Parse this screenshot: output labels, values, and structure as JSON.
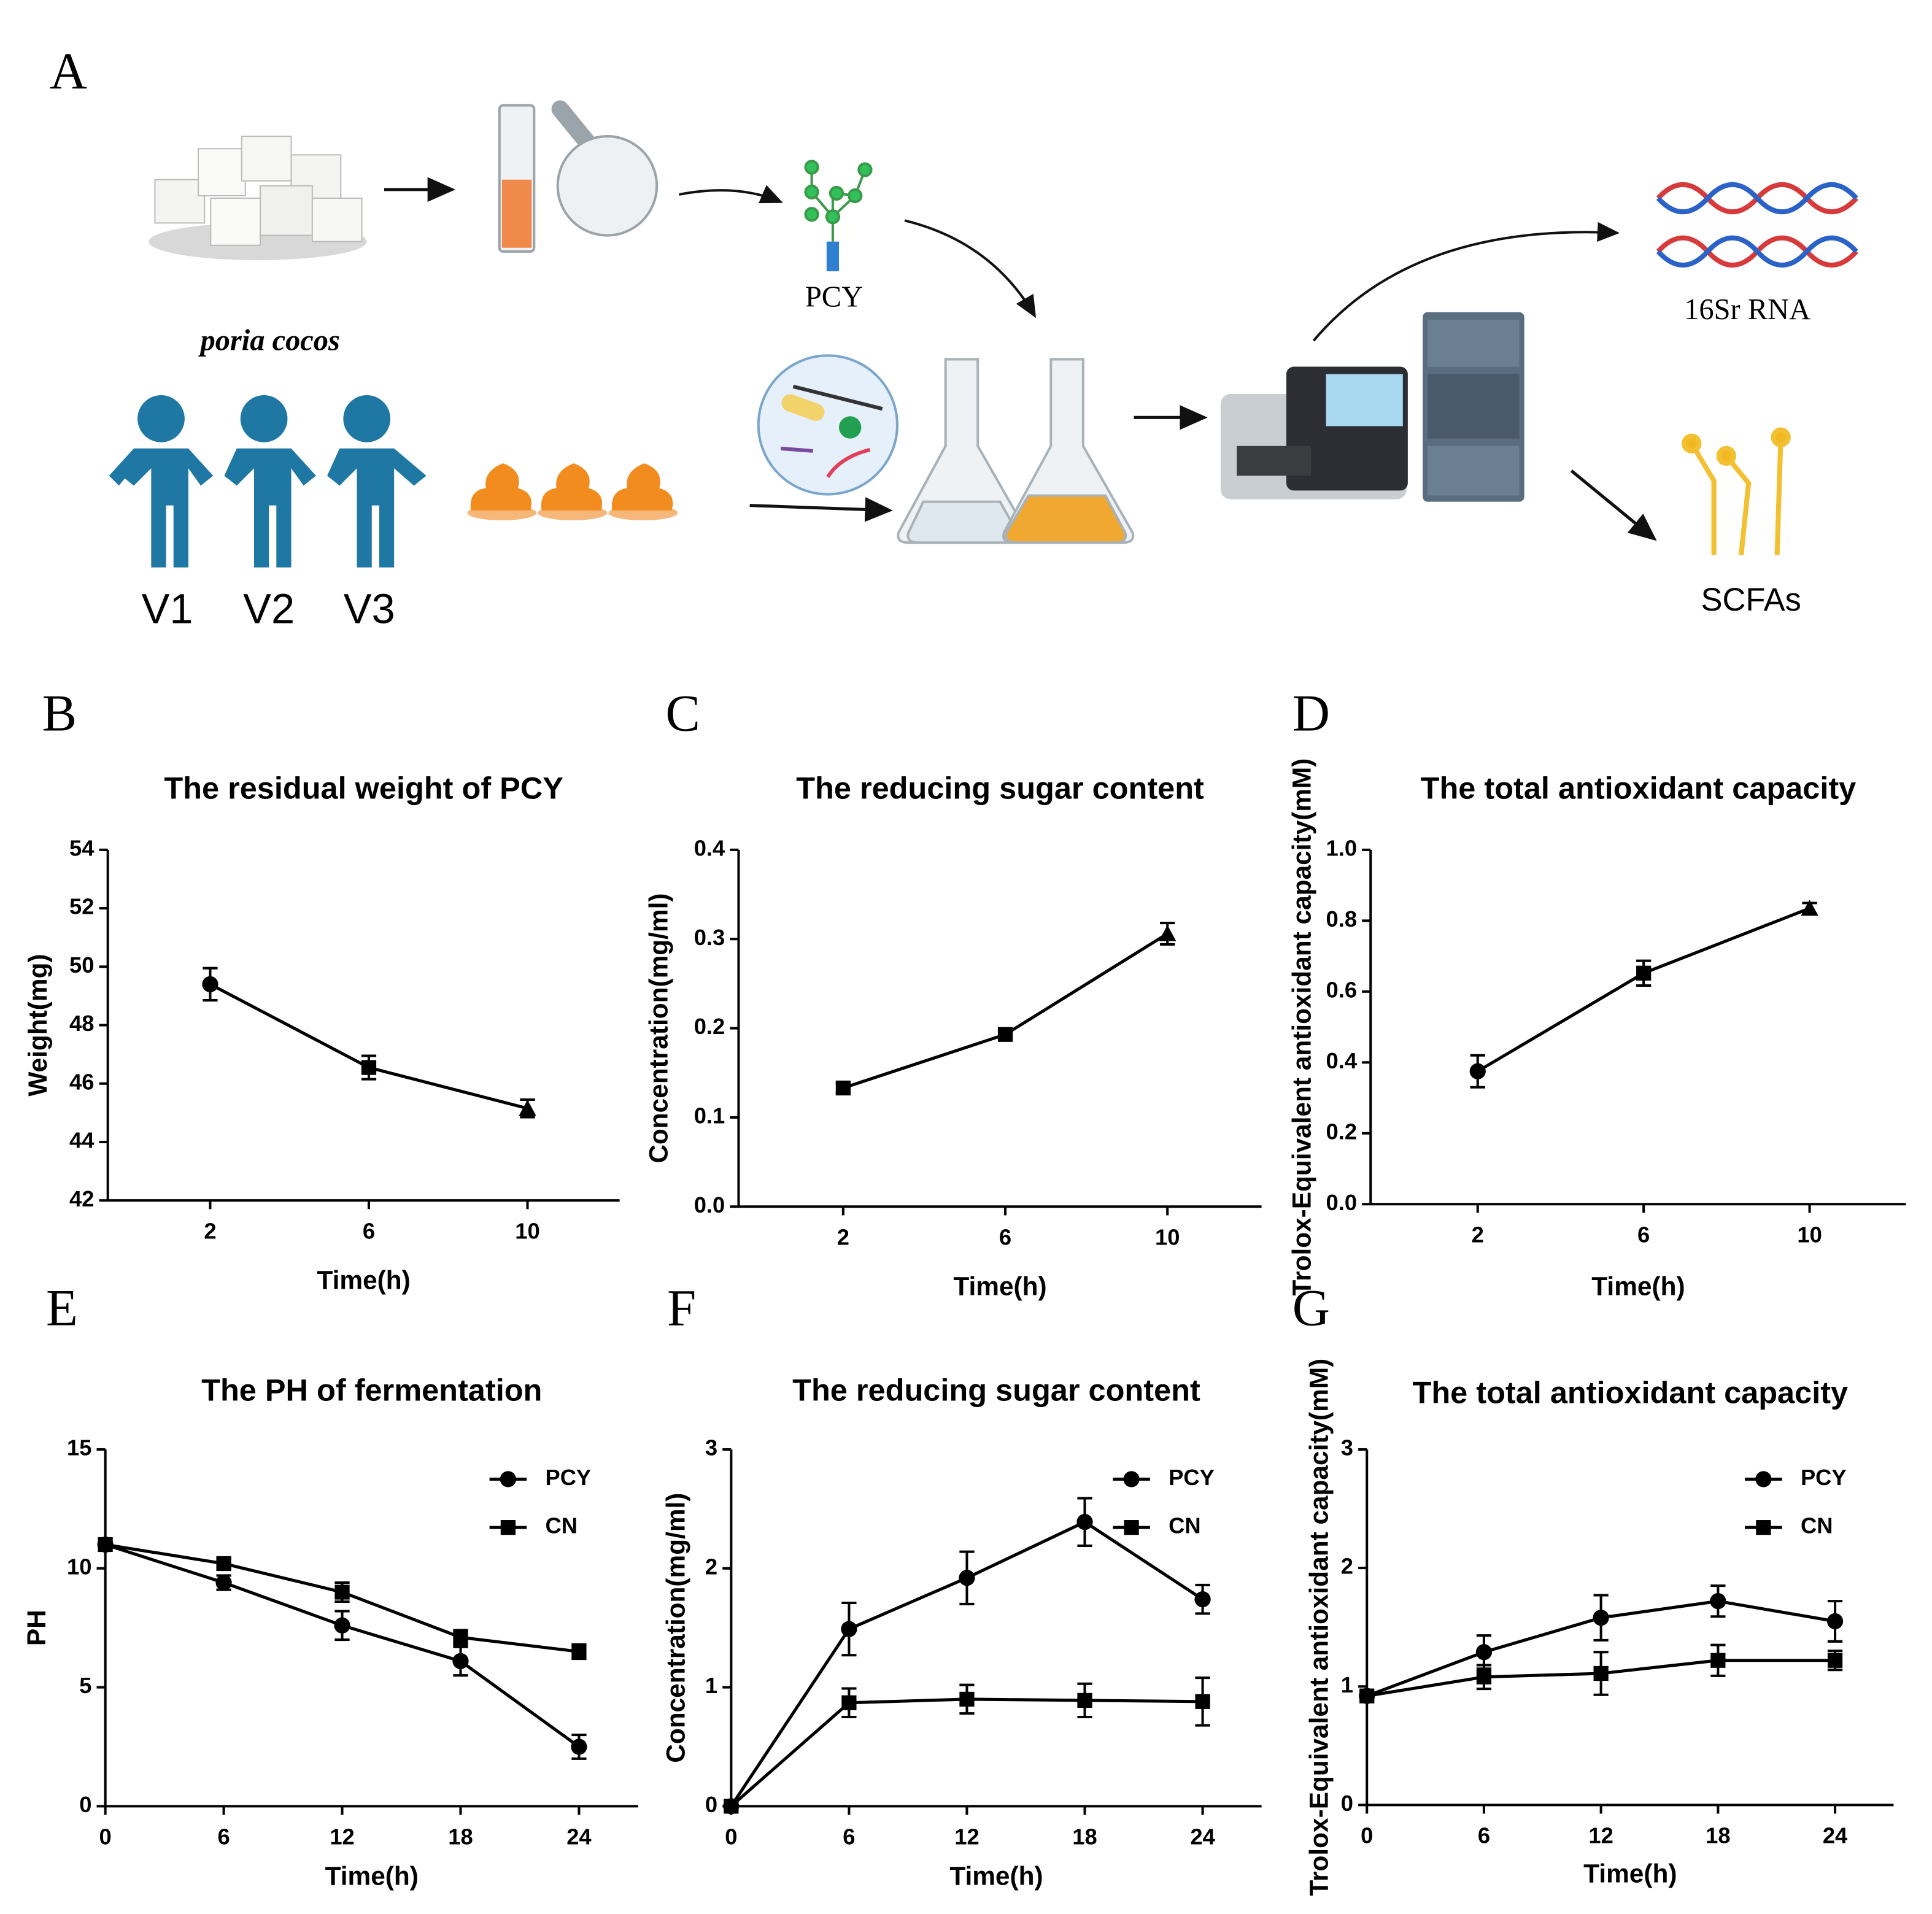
{
  "diagram": {
    "letter": "A",
    "source": "poria cocos",
    "product": "PCY",
    "volunteers": [
      "V1",
      "V2",
      "V3"
    ],
    "sequencing": "16Sr RNA",
    "metabolites": "SCFAs"
  },
  "chart_data": [
    {
      "type": "line",
      "panel": "B",
      "title": "The residual  weight of PCY",
      "x_label": "Time(h)",
      "y_label": "Weight(mg)",
      "categories": [
        "2",
        "6",
        "10"
      ],
      "series": [
        {
          "color": "#000000",
          "markers": [
            "circle",
            "square",
            "triangle"
          ],
          "values": [
            49.4,
            46.55,
            45.15
          ],
          "errors": [
            0.55,
            0.4,
            0.3
          ]
        }
      ],
      "ylim": [
        42,
        54
      ],
      "yticks": [
        42,
        44,
        46,
        48,
        50,
        52,
        54
      ]
    },
    {
      "type": "line",
      "panel": "C",
      "title": "The reducing sugar content",
      "x_label": "Time(h)",
      "y_label": "Concentration(mg/ml)",
      "categories": [
        "2",
        "6",
        "10"
      ],
      "series": [
        {
          "color": "#000000",
          "markers": [
            "square",
            "square",
            "triangle"
          ],
          "values": [
            0.133,
            0.193,
            0.306
          ],
          "errors": [
            0.006,
            0.004,
            0.012
          ]
        }
      ],
      "ylim": [
        0,
        0.4
      ],
      "yticks": [
        {
          "value": 0,
          "label": "0.0"
        },
        0.1,
        0.2,
        0.3,
        0.4
      ]
    },
    {
      "type": "line",
      "panel": "D",
      "title": "The total antioxidant capacity",
      "x_label": "Time(h)",
      "y_label": "Trolox-Equivalent antioxidant capacity(mM)",
      "categories": [
        "2",
        "6",
        "10"
      ],
      "series": [
        {
          "color": "#000000",
          "markers": [
            "circle",
            "square",
            "triangle"
          ],
          "values": [
            0.375,
            0.652,
            0.835
          ],
          "errors": [
            0.045,
            0.035,
            0.015
          ]
        }
      ],
      "ylim": [
        0,
        1
      ],
      "yticks": [
        {
          "value": 0,
          "label": "0.0"
        },
        0.2,
        0.4,
        0.6,
        0.8,
        {
          "value": 1,
          "label": "1.0"
        }
      ]
    },
    {
      "type": "line",
      "panel": "E",
      "title": "The PH of fermentation",
      "x_label": "Time(h)",
      "y_label": "PH",
      "x": [
        0,
        6,
        12,
        18,
        24
      ],
      "xlim": [
        0,
        27
      ],
      "xticks": [
        0,
        6,
        12,
        18,
        24
      ],
      "legend": "upper right",
      "series": [
        {
          "name": "PCY",
          "color": "#000000",
          "marker": "circle",
          "values": [
            11,
            9.4,
            7.6,
            6.1,
            2.5
          ],
          "errors": [
            0,
            0.3,
            0.6,
            0.6,
            0.5
          ]
        },
        {
          "name": "CN",
          "color": "#000000",
          "marker": "square",
          "values": [
            11,
            10.2,
            9.0,
            7.1,
            6.5
          ],
          "errors": [
            0,
            0.2,
            0.4,
            0.3,
            0.3
          ]
        }
      ],
      "ylim": [
        0,
        15
      ],
      "yticks": [
        0,
        5,
        10,
        15
      ]
    },
    {
      "type": "line",
      "panel": "F",
      "title": "The reducing sugar content",
      "x_label": "Time(h)",
      "y_label": "Concentration(mg/ml)",
      "x": [
        0,
        6,
        12,
        18,
        24
      ],
      "xlim": [
        0,
        27
      ],
      "xticks": [
        0,
        6,
        12,
        18,
        24
      ],
      "legend": "upper right",
      "series": [
        {
          "name": "PCY",
          "color": "#000000",
          "marker": "circle",
          "values": [
            0,
            1.49,
            1.92,
            2.39,
            1.74
          ],
          "errors": [
            0,
            0.22,
            0.22,
            0.2,
            0.12
          ]
        },
        {
          "name": "CN",
          "color": "#000000",
          "marker": "square",
          "values": [
            0,
            0.87,
            0.9,
            0.89,
            0.88
          ],
          "errors": [
            0,
            0.12,
            0.12,
            0.14,
            0.2
          ]
        }
      ],
      "ylim": [
        0,
        3
      ],
      "yticks": [
        0,
        1,
        2,
        3
      ]
    },
    {
      "type": "line",
      "panel": "G",
      "title": "The total antioxidant capacity",
      "x_label": "Time(h)",
      "y_label": "Trolox-Equivalent antioxidant capacity(mM)",
      "x": [
        0,
        6,
        12,
        18,
        24
      ],
      "xlim": [
        0,
        27
      ],
      "xticks": [
        0,
        6,
        12,
        18,
        24
      ],
      "legend": "upper right",
      "series": [
        {
          "name": "PCY",
          "color": "#000000",
          "marker": "circle",
          "values": [
            0.92,
            1.29,
            1.58,
            1.72,
            1.55
          ],
          "errors": [
            0,
            0.14,
            0.19,
            0.13,
            0.17
          ]
        },
        {
          "name": "CN",
          "color": "#000000",
          "marker": "square",
          "values": [
            0.92,
            1.08,
            1.11,
            1.22,
            1.22
          ],
          "errors": [
            0,
            0.1,
            0.18,
            0.13,
            0.08
          ]
        }
      ],
      "ylim": [
        0,
        3
      ],
      "yticks": [
        0,
        1,
        2,
        3
      ]
    }
  ]
}
